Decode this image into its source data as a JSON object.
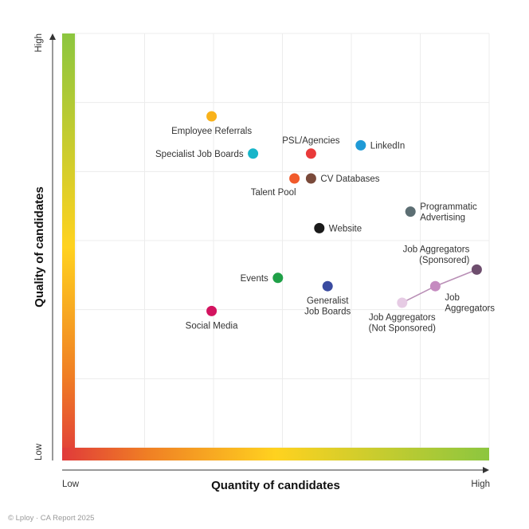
{
  "chart_data": {
    "type": "scatter",
    "title": "",
    "xlabel": "Quantity of candidates",
    "ylabel": "Quality of candidates",
    "x_low_label": "Low",
    "x_high_label": "High",
    "y_low_label": "Low",
    "y_high_label": "High",
    "xlim": [
      0,
      10
    ],
    "ylim": [
      0,
      10
    ],
    "grid": true,
    "points": [
      {
        "name": "Employee Referrals",
        "lines": [
          "Employee Referrals"
        ],
        "x": 3.3,
        "y": 8.0,
        "color": "#F9B21A",
        "pos": "below"
      },
      {
        "name": "Specialist Job Boards",
        "lines": [
          "Specialist Job Boards"
        ],
        "x": 4.3,
        "y": 7.1,
        "color": "#17B5C9",
        "pos": "left"
      },
      {
        "name": "PSL/Agencies",
        "lines": [
          "PSL/Agencies"
        ],
        "x": 5.7,
        "y": 7.1,
        "color": "#E93A3A",
        "pos": "above"
      },
      {
        "name": "LinkedIn",
        "lines": [
          "LinkedIn"
        ],
        "x": 6.9,
        "y": 7.3,
        "color": "#1F9AD6",
        "pos": "right"
      },
      {
        "name": "Talent Pool",
        "lines": [
          "Talent Pool"
        ],
        "x": 5.3,
        "y": 6.5,
        "color": "#F15A2B",
        "pos": "below-left"
      },
      {
        "name": "CV Databases",
        "lines": [
          "CV Databases"
        ],
        "x": 5.7,
        "y": 6.5,
        "color": "#7A4A3A",
        "pos": "right"
      },
      {
        "name": "Programmatic Advertising",
        "lines": [
          "Programmatic",
          "Advertising"
        ],
        "x": 8.1,
        "y": 5.7,
        "color": "#5C6E73",
        "pos": "right"
      },
      {
        "name": "Website",
        "lines": [
          "Website"
        ],
        "x": 5.9,
        "y": 5.3,
        "color": "#1A1A1A",
        "pos": "right"
      },
      {
        "name": "Job Aggregators (Sponsored)",
        "lines": [
          "Job Aggregators",
          "(Sponsored)"
        ],
        "x": 9.7,
        "y": 4.3,
        "color": "#6E4E6E",
        "pos": "above-left"
      },
      {
        "name": "Job Aggregators",
        "lines": [
          "Job",
          "Aggregators"
        ],
        "x": 8.7,
        "y": 3.9,
        "color": "#C58BC0",
        "pos": "below-right"
      },
      {
        "name": "Job Aggregators (Not Sponsored)",
        "lines": [
          "Job Aggregators",
          "(Not Sponsored)"
        ],
        "x": 7.9,
        "y": 3.5,
        "color": "#E6CBE4",
        "pos": "below"
      },
      {
        "name": "Events",
        "lines": [
          "Events"
        ],
        "x": 4.9,
        "y": 4.1,
        "color": "#1FA047",
        "pos": "left"
      },
      {
        "name": "Generalist Job Boards",
        "lines": [
          "Generalist",
          "Job Boards"
        ],
        "x": 6.1,
        "y": 3.9,
        "color": "#3A4BA0",
        "pos": "below"
      },
      {
        "name": "Social Media",
        "lines": [
          "Social Media"
        ],
        "x": 3.3,
        "y": 3.3,
        "color": "#D3135F",
        "pos": "below"
      }
    ],
    "connections": [
      {
        "from": "Job Aggregators (Not Sponsored)",
        "to": "Job Aggregators"
      },
      {
        "from": "Job Aggregators",
        "to": "Job Aggregators (Sponsored)"
      }
    ]
  },
  "footer": "© Lploy · CA Report 2025"
}
